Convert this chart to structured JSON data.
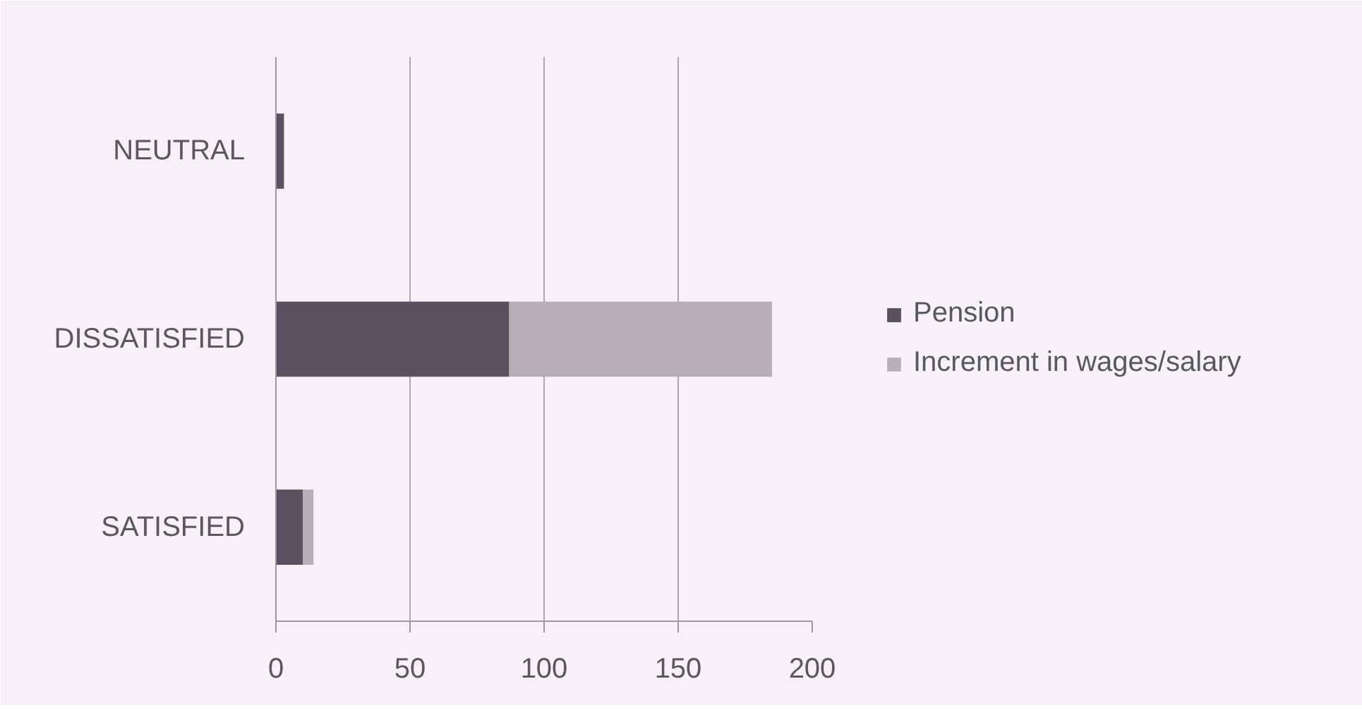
{
  "chart_data": {
    "type": "bar",
    "orientation": "horizontal",
    "stacked": true,
    "categories": [
      "NEUTRAL",
      "DISSATISFIED",
      "SATISFIED"
    ],
    "series": [
      {
        "name": "Pension",
        "color": "#5a5260",
        "values": [
          3,
          87,
          10
        ]
      },
      {
        "name": "Increment in wages/salary",
        "color": "#b8aeb7",
        "values": [
          null,
          98,
          4
        ]
      }
    ],
    "xlim": [
      0,
      200
    ],
    "xticks": [
      0,
      50,
      100,
      150,
      200
    ],
    "grid": "x",
    "legend": "right"
  }
}
